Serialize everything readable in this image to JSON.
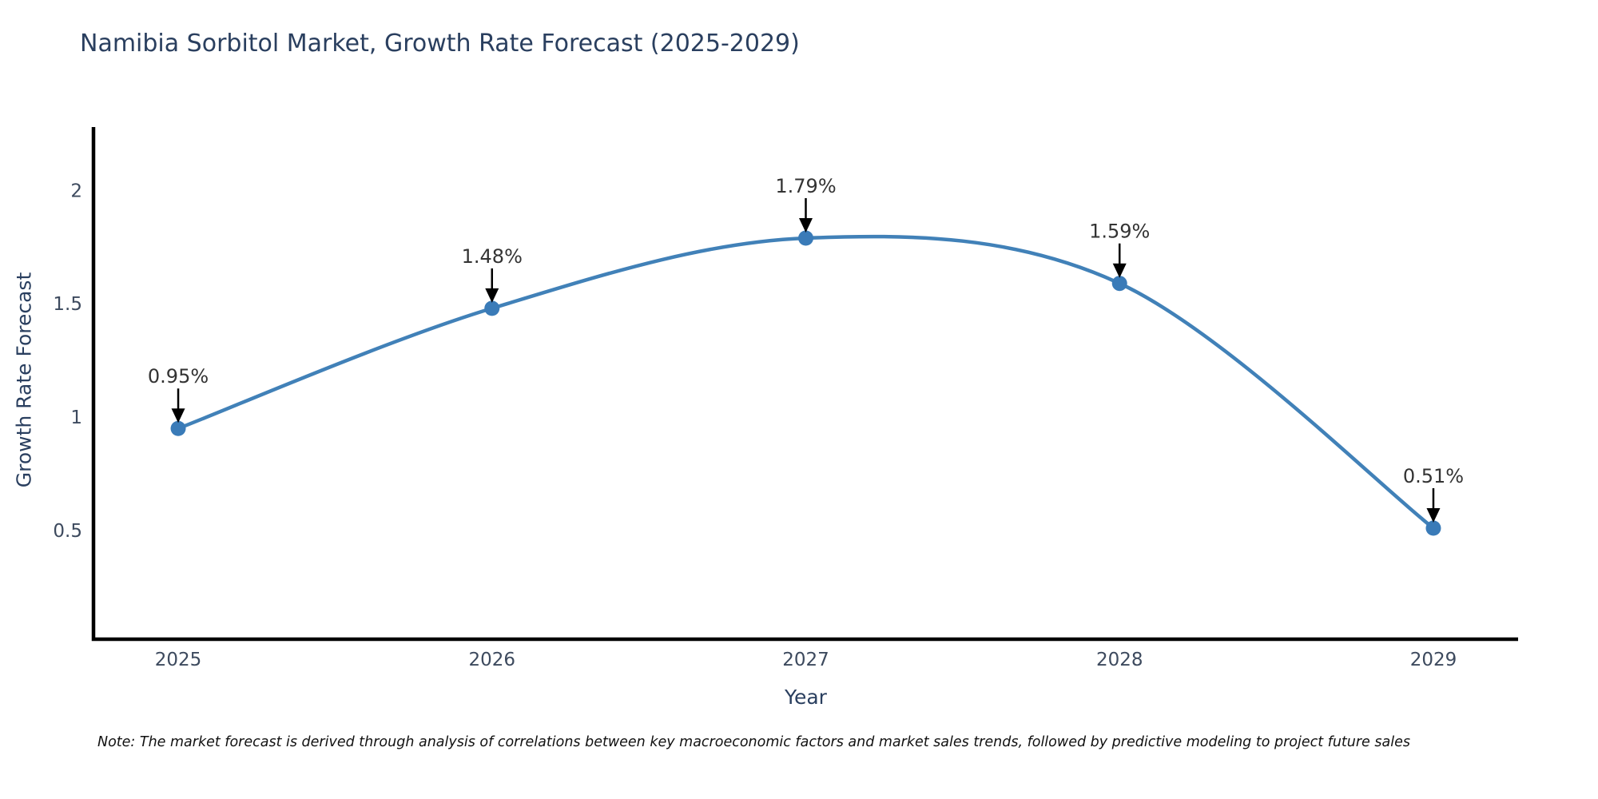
{
  "page": {
    "title": "Namibia Sorbitol Market, Growth Rate Forecast (2025-2029)",
    "note": "Note: The market forecast is derived through analysis of correlations between key macroeconomic factors and market sales trends, followed by predictive modeling to project future sales"
  },
  "chart_data": {
    "type": "line",
    "line_shape": "spline",
    "title": "Namibia Sorbitol Market, Growth Rate Forecast (2025-2029)",
    "xlabel": "Year",
    "ylabel": "Growth Rate Forecast",
    "categories": [
      2025,
      2026,
      2027,
      2028,
      2029
    ],
    "values": [
      0.95,
      1.48,
      1.79,
      1.59,
      0.51
    ],
    "point_labels": [
      "0.95%",
      "1.48%",
      "1.79%",
      "1.59%",
      "0.51%"
    ],
    "annotation_style": "down-arrow",
    "yticks": [
      0.5,
      1,
      1.5,
      2
    ],
    "ylim": [
      0.02,
      2.28
    ],
    "xlim": [
      2024.73,
      2029.27
    ],
    "grid": false,
    "legend": "none",
    "colors": {
      "line": "#4181b8",
      "marker": "#3a7bb8",
      "axis_line": "#000000",
      "arrow": "#000000",
      "title_text": "#2a3f5f",
      "axis_title_text": "#2a3f5f",
      "tick_text": "#3d4a5e",
      "annotation_text": "#333333",
      "background": "#ffffff"
    }
  }
}
